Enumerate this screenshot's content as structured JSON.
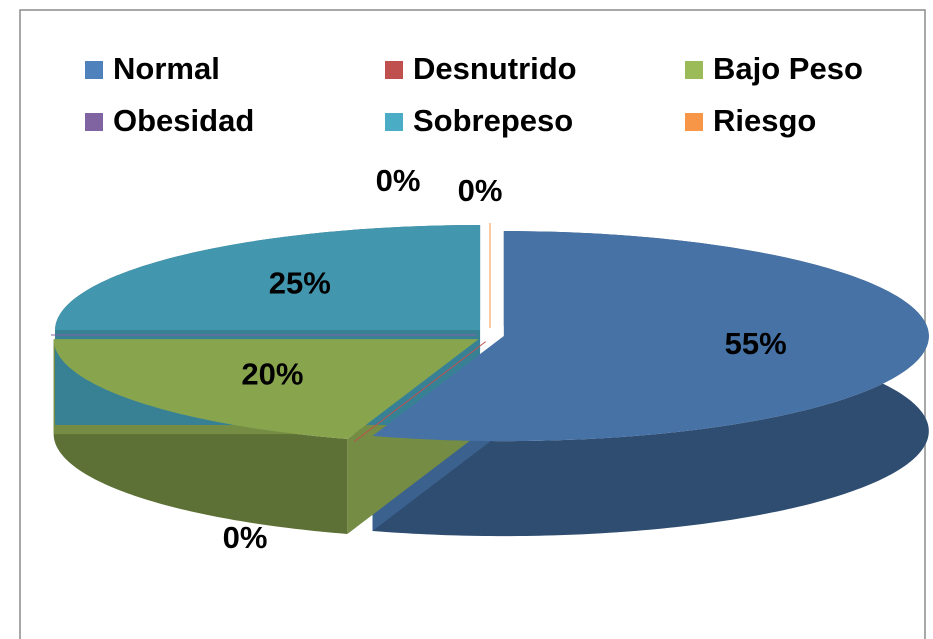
{
  "chart_data": {
    "type": "pie",
    "categories": [
      "Normal",
      "Desnutrido",
      "Bajo Peso",
      "Obesidad",
      "Sobrepeso",
      "Riesgo"
    ],
    "values": [
      55,
      0,
      20,
      0,
      25,
      0
    ],
    "value_labels": [
      "55%",
      "0%",
      "20%",
      "0%",
      "25%",
      "0%"
    ],
    "colors": [
      "#4f81bd",
      "#c0504d",
      "#9bbb59",
      "#8064a2",
      "#4bacc6",
      "#f79646"
    ],
    "legend": "top"
  }
}
